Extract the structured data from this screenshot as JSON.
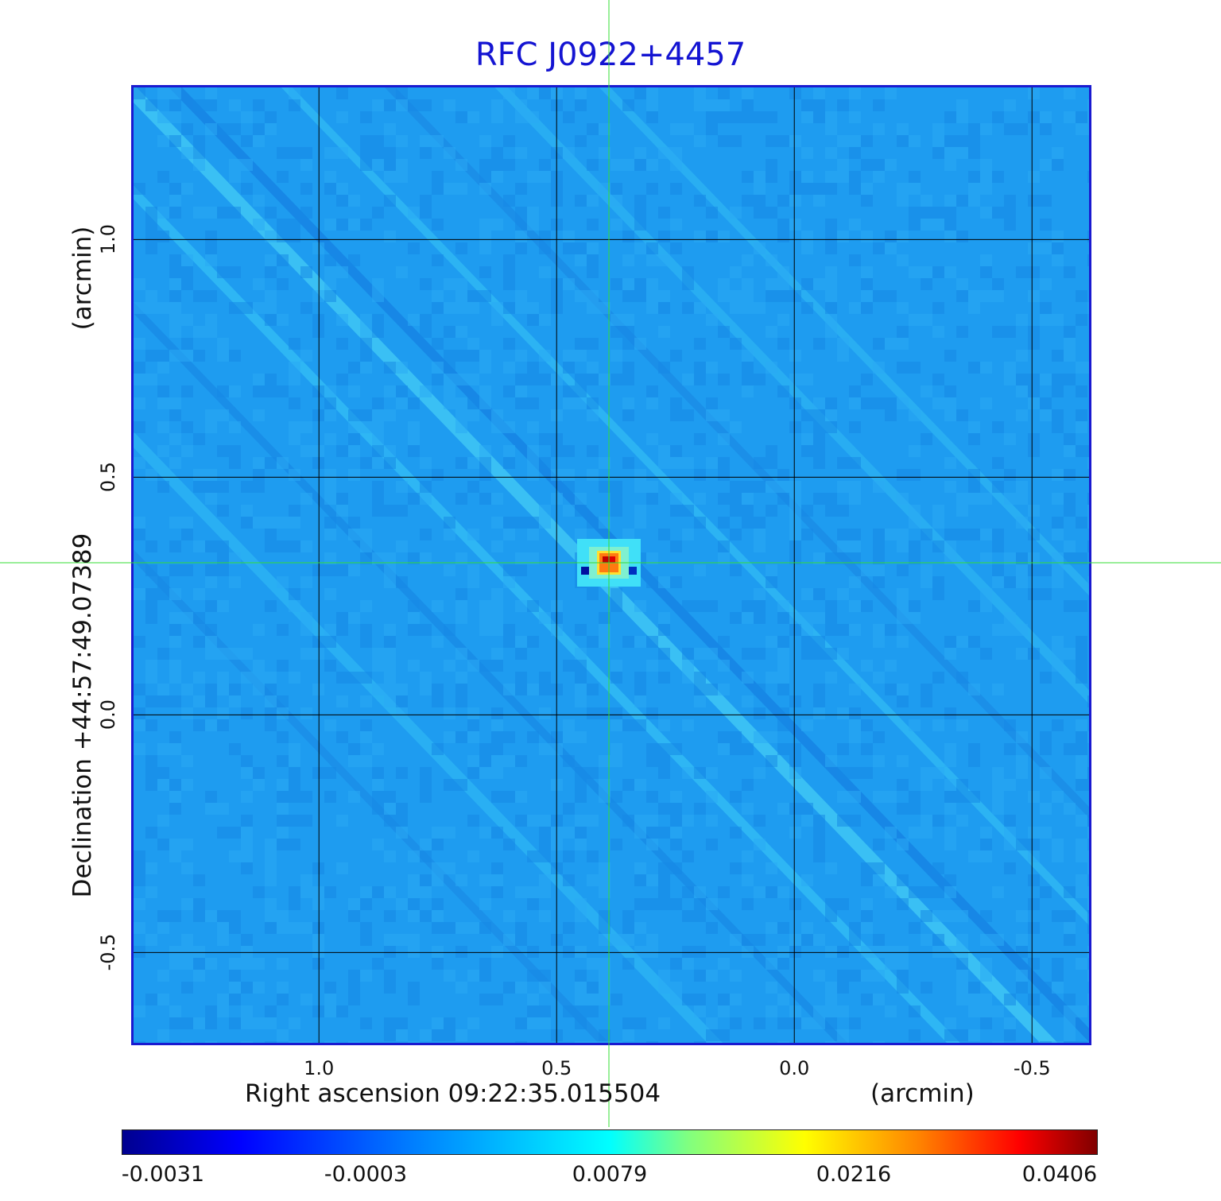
{
  "chart_data": {
    "type": "heatmap",
    "title": "RFC J0922+4457",
    "xlabel": "Right ascension  09:22:35.015504",
    "xunit": "(arcmin)",
    "ylabel": "Declination  +44:57:49.07389",
    "yunit": "(arcmin)",
    "xlim": [
      1.39,
      -0.62
    ],
    "ylim": [
      -0.69,
      1.32
    ],
    "x_ticks": [
      1.0,
      0.5,
      0.0,
      -0.5
    ],
    "x_tick_labels": [
      "1.0",
      "0.5",
      "0.0",
      "-0.5"
    ],
    "y_ticks": [
      1.0,
      0.5,
      0.0,
      -0.5
    ],
    "y_tick_labels": [
      "1.0",
      "0.5",
      "0.0",
      "-0.5"
    ],
    "grid": true,
    "crosshair": {
      "x": 0.39,
      "y": 0.32,
      "color": "#33dd33"
    },
    "peak_position": {
      "x": 0.39,
      "y": 0.32
    },
    "colormap": "jet",
    "colorbar": {
      "labels": [
        "-0.0031",
        "-0.0003",
        "0.0079",
        "0.0216",
        "0.0406"
      ],
      "range": [
        -0.0031,
        0.0406
      ]
    },
    "background_color": "#1e9cf0",
    "border_color": "#1a1ad0"
  }
}
